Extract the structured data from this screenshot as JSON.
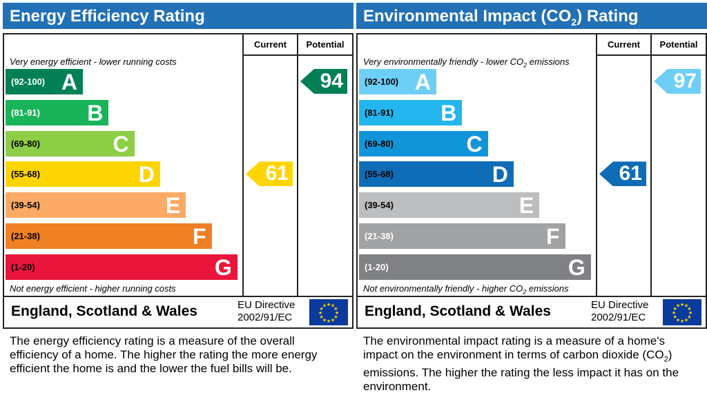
{
  "panels": [
    {
      "title": "Energy Efficiency Rating",
      "columns": {
        "current": "Current",
        "potential": "Potential"
      },
      "top_caption": "Very energy efficient - lower running costs",
      "bottom_caption": "Not energy efficient - higher running costs",
      "bands": [
        {
          "range": "(92-100)",
          "letter": "A",
          "color": "#008054",
          "range_color": "#ffffff"
        },
        {
          "range": "(81-91)",
          "letter": "B",
          "color": "#19b459",
          "range_color": "#ffffff"
        },
        {
          "range": "(69-80)",
          "letter": "C",
          "color": "#8dce46",
          "range_color": "#000000"
        },
        {
          "range": "(55-68)",
          "letter": "D",
          "color": "#ffd500",
          "range_color": "#000000"
        },
        {
          "range": "(39-54)",
          "letter": "E",
          "color": "#fcaa65",
          "range_color": "#000000"
        },
        {
          "range": "(21-38)",
          "letter": "F",
          "color": "#ef8023",
          "range_color": "#000000"
        },
        {
          "range": "(1-20)",
          "letter": "G",
          "color": "#e9153b",
          "range_color": "#000000"
        }
      ],
      "current": {
        "value": "61",
        "band": "D",
        "color": "#ffd500"
      },
      "potential": {
        "value": "94",
        "band": "A",
        "color": "#008054"
      },
      "country": "England, Scotland & Wales",
      "eu_directive_line1": "EU Directive",
      "eu_directive_line2": "2002/91/EC",
      "description": "The energy efficiency rating is a measure of the overall efficiency of a home. The higher the rating the more energy efficient the home is and the lower the fuel bills will be."
    },
    {
      "title_pre": "Environmental Impact (CO",
      "title_sub": "2",
      "title_post": ") Rating",
      "columns": {
        "current": "Current",
        "potential": "Potential"
      },
      "top_caption_pre": "Very environmentally friendly - lower CO",
      "top_caption_sub": "2",
      "top_caption_post": " emissions",
      "bottom_caption_pre": "Not environmentally friendly - higher CO",
      "bottom_caption_sub": "2",
      "bottom_caption_post": " emissions",
      "bands": [
        {
          "range": "(92-100)",
          "letter": "A",
          "color": "#6ecff6",
          "range_color": "#000000"
        },
        {
          "range": "(81-91)",
          "letter": "B",
          "color": "#23b6ee",
          "range_color": "#000000"
        },
        {
          "range": "(69-80)",
          "letter": "C",
          "color": "#1295d8",
          "range_color": "#000000"
        },
        {
          "range": "(55-68)",
          "letter": "D",
          "color": "#0f6cb6",
          "range_color": "#000000"
        },
        {
          "range": "(39-54)",
          "letter": "E",
          "color": "#bbbdbf",
          "range_color": "#000000"
        },
        {
          "range": "(21-38)",
          "letter": "F",
          "color": "#a0a2a4",
          "range_color": "#ffffff"
        },
        {
          "range": "(1-20)",
          "letter": "G",
          "color": "#808184",
          "range_color": "#ffffff"
        }
      ],
      "current": {
        "value": "61",
        "band": "D",
        "color": "#0f6cb6"
      },
      "potential": {
        "value": "97",
        "band": "A",
        "color": "#6ecff6"
      },
      "country": "England, Scotland & Wales",
      "eu_directive_line1": "EU Directive",
      "eu_directive_line2": "2002/91/EC",
      "description_pre": "The environmental impact rating is a measure of a home's impact on the environment in terms of carbon dioxide (CO",
      "description_sub": "2",
      "description_post": ") emissions. The higher the rating the less impact it has on the environment."
    }
  ]
}
